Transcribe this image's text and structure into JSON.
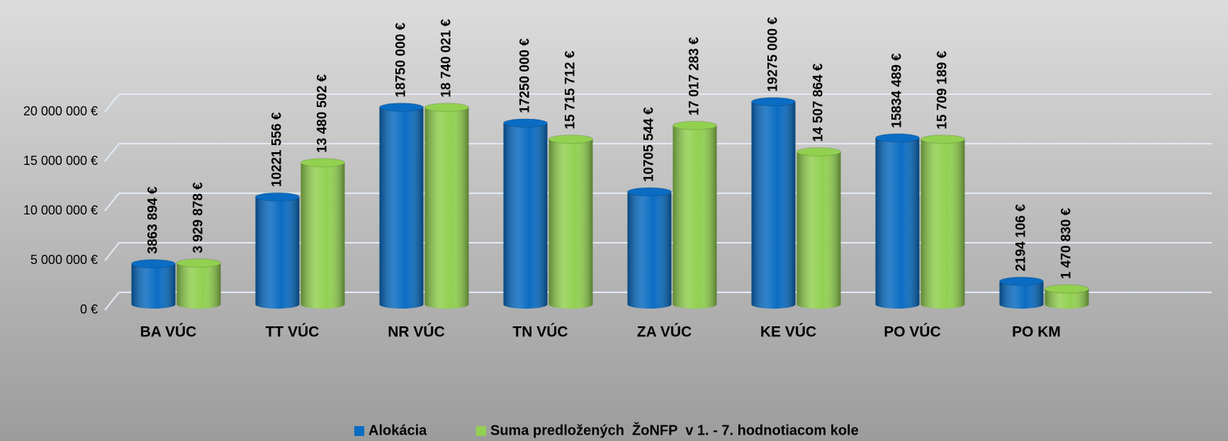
{
  "chart_data": {
    "type": "bar",
    "categories": [
      "BA VÚC",
      "TT VÚC",
      "NR VÚC",
      "TN VÚC",
      "ZA VÚC",
      "KE VÚC",
      "PO VÚC",
      "PO KM"
    ],
    "series": [
      {
        "name": "Alokácia",
        "color": "#0a6cc2",
        "values": [
          3863894,
          10221556,
          18750000,
          17250000,
          10705544,
          19275000,
          15834489,
          2194106
        ],
        "value_labels": [
          "3863 894 €",
          "10221 556 €",
          "18750 000 €",
          "17250 000 €",
          "10705 544 €",
          "19275 000 €",
          "15834 489 €",
          "2194 106 €"
        ]
      },
      {
        "name": "Suma predložených  ŽoNFP  v 1. - 7. hodnotiacom kole",
        "color": "#92d050",
        "values": [
          3929878,
          13480502,
          18740021,
          15715712,
          17017283,
          14507864,
          15709189,
          1470830
        ],
        "value_labels": [
          "3 929 878 €",
          "13 480 502 €",
          "18 740 021 €",
          "15 715 712 €",
          "17 017 283 €",
          "14 507 864 €",
          "15 709 189 €",
          "1 470 830 €"
        ]
      }
    ],
    "ylim": [
      0,
      20000000
    ],
    "yticks": [
      {
        "value": 0,
        "label": "0 €"
      },
      {
        "value": 5000000,
        "label": "5 000 000 €"
      },
      {
        "value": 10000000,
        "label": "10 000 000 €"
      },
      {
        "value": 15000000,
        "label": "15 000 000 €"
      },
      {
        "value": 20000000,
        "label": "20 000 000 €"
      }
    ],
    "grid": true,
    "legend": "bottom"
  }
}
